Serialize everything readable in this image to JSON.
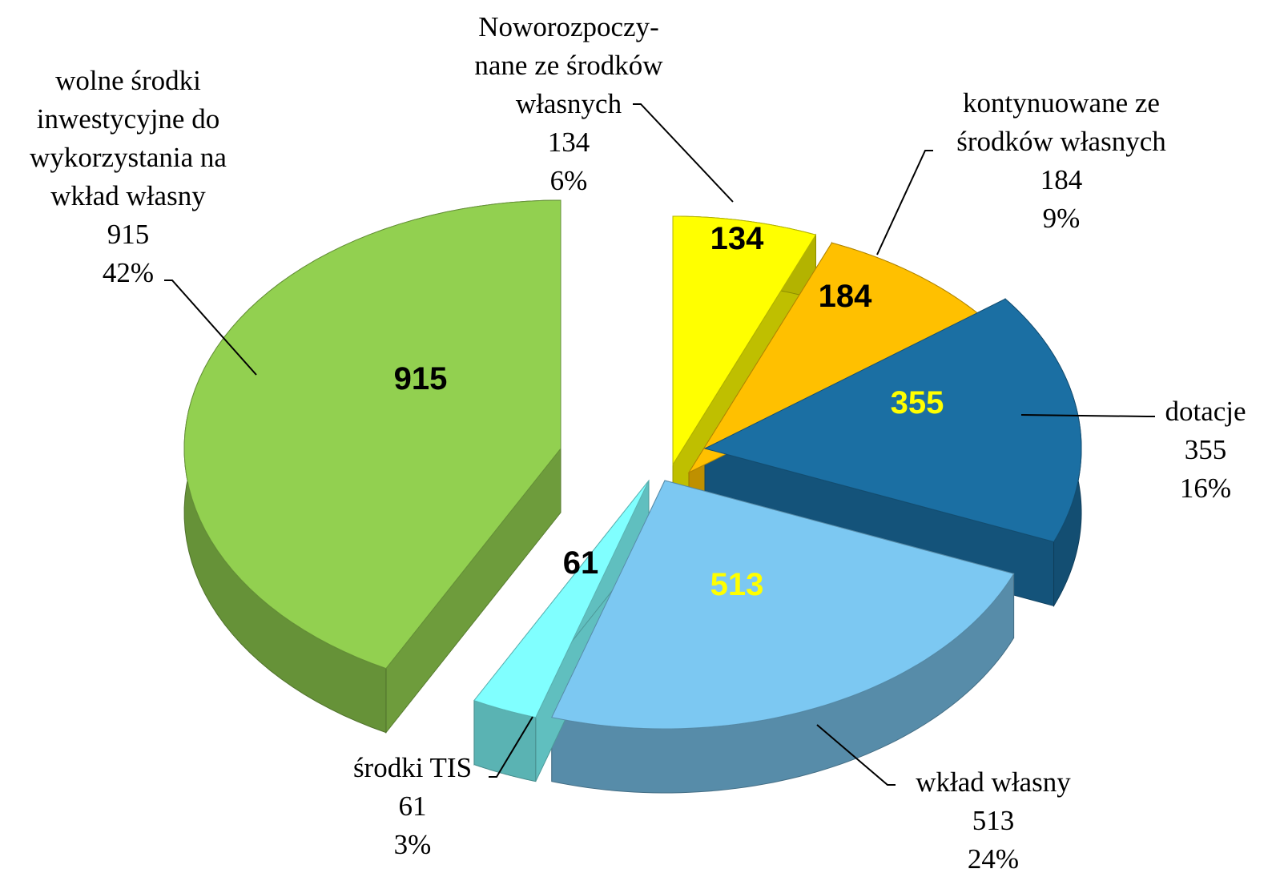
{
  "chart_data": {
    "type": "pie3d",
    "categories": [
      "Noworozpoczy-\nnane ze środków\nwłasnych",
      "kontynuowane ze\nśrodków własnych",
      "dotacje",
      "wkład własny",
      "środki TIS",
      "wolne środki\ninwestycyjne do\nwykorzystania na\nwkład własny"
    ],
    "values": [
      134,
      184,
      355,
      513,
      61,
      915
    ],
    "percent_labels": [
      "6%",
      "9%",
      "16%",
      "24%",
      "3%",
      "42%"
    ],
    "colors": [
      "#ffff00",
      "#ffc000",
      "#1b6fa3",
      "#7cc8f2",
      "#80ffff",
      "#92d050"
    ],
    "label_colors": [
      "#000000",
      "#000000",
      "#ffff00",
      "#ffff00",
      "#000000",
      "#000000"
    ]
  }
}
